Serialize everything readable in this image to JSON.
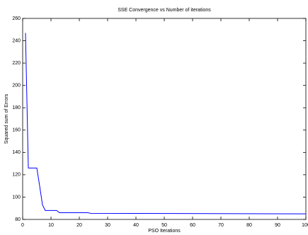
{
  "chart_data": {
    "type": "line",
    "title": "SSE Convergence vs Number of iterations",
    "x_label": "PSO Iterations",
    "y_label": "Squared sum of Errors",
    "x": [
      1,
      2,
      5,
      6,
      7,
      8,
      12,
      13,
      23,
      24,
      100
    ],
    "series": [
      {
        "name": "SSE",
        "color": "#0000ff",
        "values": [
          247,
          126,
          126,
          110,
          93,
          88,
          88,
          86,
          86,
          85.5,
          85
        ]
      }
    ],
    "xlim": [
      0,
      100
    ],
    "xticks": [
      0,
      10,
      20,
      30,
      40,
      50,
      60,
      70,
      80,
      90,
      100
    ],
    "ylim": [
      80,
      260
    ],
    "yticks": [
      80,
      100,
      120,
      140,
      160,
      180,
      200,
      220,
      240,
      260
    ]
  }
}
